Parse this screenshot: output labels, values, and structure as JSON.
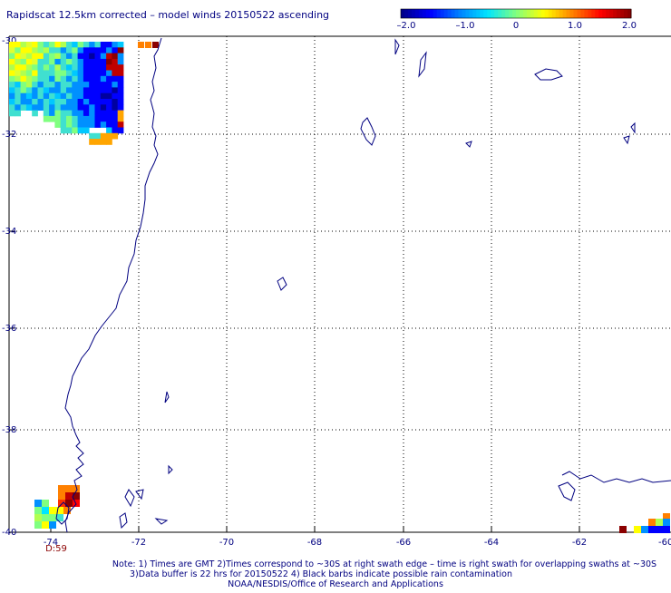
{
  "title": "Rapidscat 12.5km corrected – model winds 20150522 ascending",
  "colorbar": {
    "colors": [
      "#00008b",
      "#0000ff",
      "#0080ff",
      "#00e5ff",
      "#80ff80",
      "#ffff00",
      "#ff8000",
      "#ff0000",
      "#8b0000"
    ],
    "ticks": [
      "–2.0",
      "–1.0",
      "0",
      "1.0",
      "2.0"
    ]
  },
  "axes": {
    "lon_ticks": [
      "-74",
      "-72",
      "-70",
      "-68",
      "-66",
      "-64",
      "-62",
      "-60"
    ],
    "lat_ticks": [
      "-30",
      "-32",
      "-34",
      "-36",
      "-38",
      "-40"
    ]
  },
  "time_label": "D:59",
  "notes": {
    "line1": "Note: 1) Times are GMT 2)Times correspond to ~30S at right swath edge – time is right swath for overlapping swaths at ~30S",
    "line2": "3)Data buffer is 22 hrs for 20150522 4) Black barbs indicate possible rain contamination",
    "line3": "NOAA/NESDIS/Office of Research and Applications"
  },
  "colors": {
    "coastline": "#000080",
    "grid": "#000000",
    "text": "#000080",
    "time_label": "#8b0000"
  }
}
